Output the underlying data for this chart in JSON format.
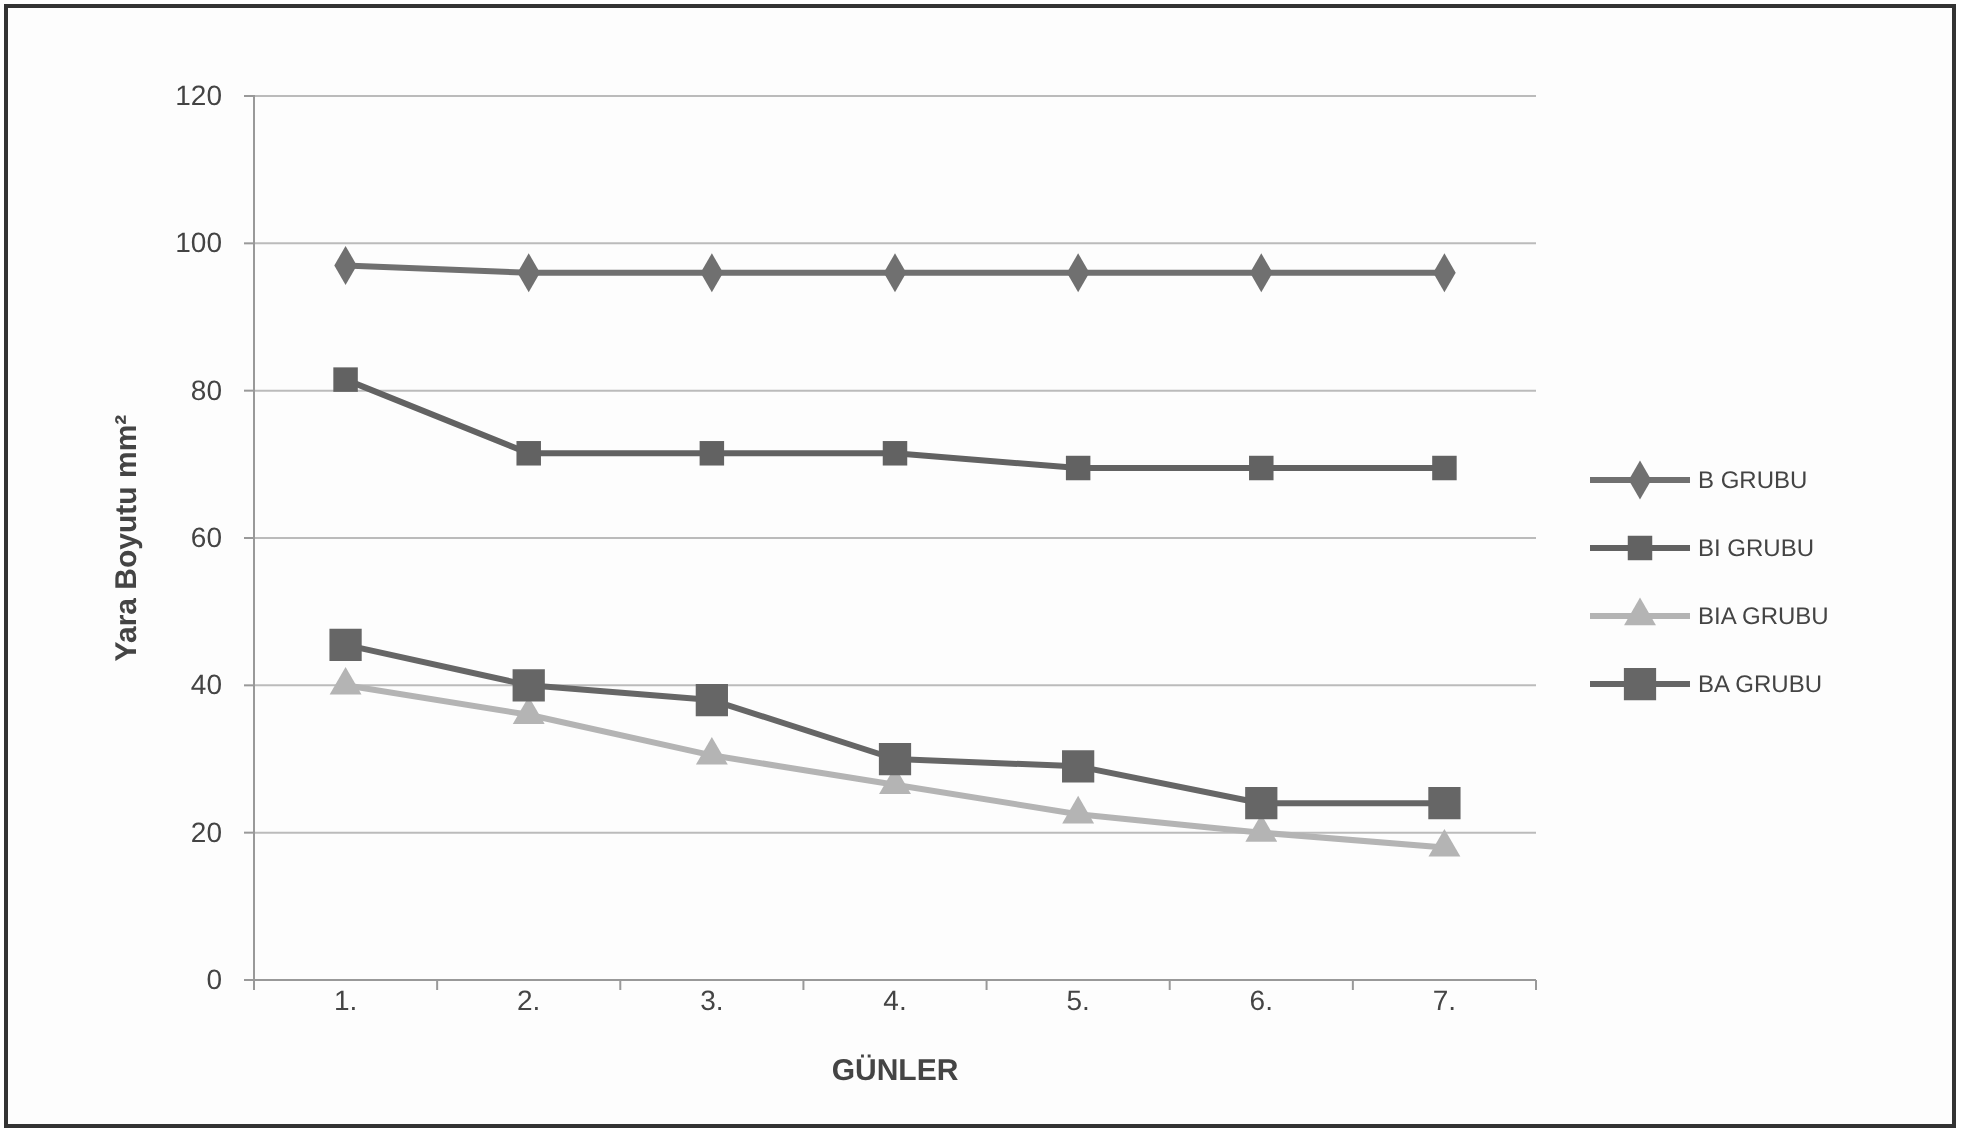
{
  "chart_data": {
    "type": "line",
    "xlabel": "GÜNLER",
    "ylabel": "Yara Boyutu mm²",
    "categories": [
      "1.",
      "2.",
      "3.",
      "4.",
      "5.",
      "6.",
      "7."
    ],
    "series": [
      {
        "name": "B GRUBU",
        "color": "#707070",
        "marker": "diamond",
        "values": [
          97,
          96,
          96,
          96,
          96,
          96,
          96
        ]
      },
      {
        "name": "BI GRUBU",
        "color": "#626262",
        "marker": "square",
        "values": [
          81.5,
          71.5,
          71.5,
          71.5,
          69.5,
          69.5,
          69.5
        ]
      },
      {
        "name": "BIA GRUBU",
        "color": "#b4b4b4",
        "marker": "triangle",
        "values": [
          40,
          36,
          30.5,
          26.5,
          22.5,
          20,
          18
        ]
      },
      {
        "name": "BA GRUBU",
        "color": "#666666",
        "marker": "square",
        "values": [
          45.5,
          40,
          38,
          30,
          29,
          24,
          24
        ]
      }
    ],
    "ylim": [
      0,
      120
    ],
    "yticks": [
      0,
      20,
      40,
      60,
      80,
      100,
      120
    ],
    "grid": "y",
    "legend": "right"
  }
}
